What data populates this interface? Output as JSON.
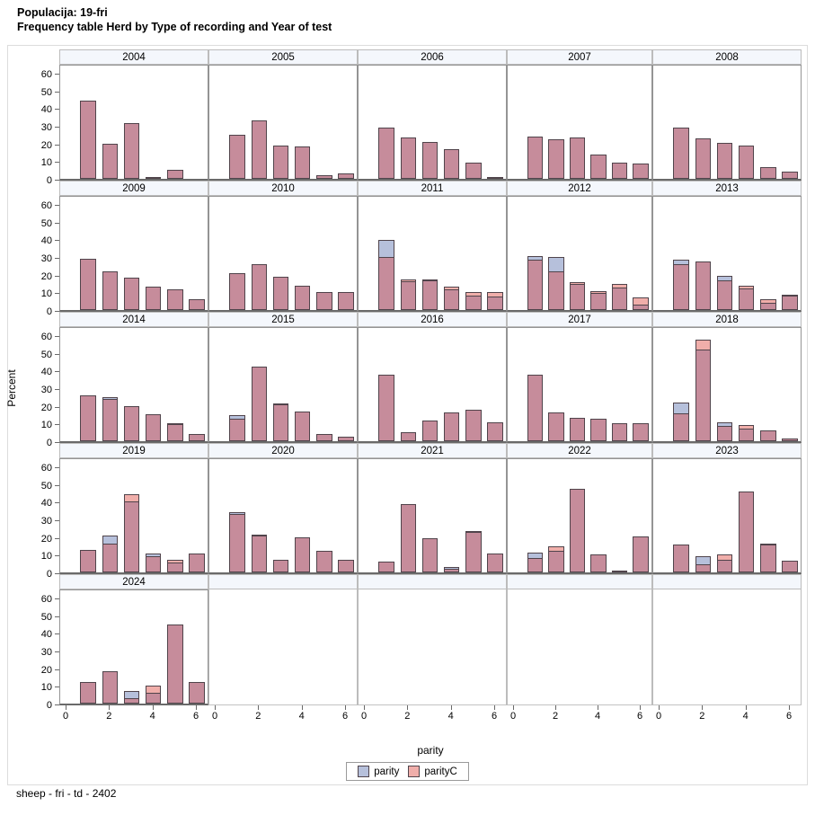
{
  "header": {
    "line1": "Populacija: 19-fri",
    "line2": "Frequency table Herd by Type of recording and Year of test"
  },
  "footer": {
    "text": "sheep - fri - td - 2402"
  },
  "chart_data": {
    "type": "bar",
    "subtype": "paneled-histogram-lattice",
    "title": "Frequency table Herd by Type of recording and Year of test",
    "xlabel": "parity",
    "ylabel": "Percent",
    "x": [
      1,
      2,
      3,
      4,
      5,
      6
    ],
    "xticks": [
      0,
      2,
      4,
      6
    ],
    "yticks": [
      0,
      10,
      20,
      30,
      40,
      50,
      60
    ],
    "ylim": [
      0,
      60
    ],
    "grid": "off",
    "legend_position": "bottom-center",
    "series_names": [
      "parity",
      "parityC"
    ],
    "colors": {
      "parity_fill": "#b6c0db",
      "parityC_fill": "#f0aeaa",
      "overlap_fill": "#c68c9b",
      "bar_border": "#50444b",
      "band_fill": "#f4f7fc",
      "axis": "#696969"
    },
    "panels": [
      {
        "year": "2004",
        "parity": [
          44,
          20,
          31.5,
          0.5,
          5,
          0
        ],
        "parityC": [
          44,
          20,
          31.5,
          0.5,
          5,
          0
        ]
      },
      {
        "year": "2005",
        "parity": [
          25,
          33,
          19,
          18.5,
          2,
          3
        ],
        "parityC": [
          25,
          33,
          19,
          18.5,
          2,
          3
        ]
      },
      {
        "year": "2006",
        "parity": [
          29,
          23.5,
          21,
          17,
          9,
          1
        ],
        "parityC": [
          29,
          23.5,
          21,
          17,
          9,
          1
        ]
      },
      {
        "year": "2007",
        "parity": [
          24,
          22.5,
          23.5,
          13.5,
          9,
          8.5
        ],
        "parityC": [
          24,
          22.5,
          23.5,
          13.5,
          9,
          8.5
        ]
      },
      {
        "year": "2008",
        "parity": [
          29,
          23,
          20.5,
          19,
          6.5,
          4
        ],
        "parityC": [
          29,
          23,
          20.5,
          19,
          6.5,
          4
        ]
      },
      {
        "year": "2009",
        "parity": [
          29,
          22,
          18.5,
          13,
          11.5,
          6
        ],
        "parityC": [
          29,
          22,
          18.5,
          13,
          11.5,
          6
        ]
      },
      {
        "year": "2010",
        "parity": [
          21,
          26,
          19,
          13.5,
          10,
          10
        ],
        "parityC": [
          21,
          26,
          19,
          13.5,
          10,
          10
        ]
      },
      {
        "year": "2011",
        "parity": [
          39.5,
          16.5,
          17,
          11.5,
          8,
          7.5
        ],
        "parityC": [
          30,
          17.5,
          17.5,
          13,
          10,
          10
        ]
      },
      {
        "year": "2012",
        "parity": [
          30.5,
          30,
          15,
          9.5,
          12.5,
          3
        ],
        "parityC": [
          28.5,
          22,
          16,
          10.5,
          14.5,
          7
        ]
      },
      {
        "year": "2013",
        "parity": [
          28.5,
          27.5,
          19.5,
          12,
          4,
          8
        ],
        "parityC": [
          26,
          27.5,
          17,
          13.5,
          6,
          8.5
        ]
      },
      {
        "year": "2014",
        "parity": [
          26,
          25,
          20,
          15.5,
          9.5,
          4
        ],
        "parityC": [
          26,
          24,
          20,
          15.5,
          10,
          4
        ]
      },
      {
        "year": "2015",
        "parity": [
          15,
          42,
          21,
          17,
          4,
          2.5
        ],
        "parityC": [
          12.5,
          42,
          21.5,
          17,
          4,
          2.5
        ]
      },
      {
        "year": "2016",
        "parity": [
          37.5,
          5,
          11.5,
          16.5,
          18,
          10.5
        ],
        "parityC": [
          37.5,
          5,
          11.5,
          16.5,
          18,
          10.5
        ]
      },
      {
        "year": "2017",
        "parity": [
          37.5,
          16.5,
          13,
          12.5,
          10,
          10
        ],
        "parityC": [
          37.5,
          16.5,
          13,
          12.5,
          10,
          10
        ]
      },
      {
        "year": "2018",
        "parity": [
          22,
          52,
          10.5,
          7,
          6,
          1.5
        ],
        "parityC": [
          16,
          57.5,
          8.5,
          9,
          6,
          1.5
        ]
      },
      {
        "year": "2019",
        "parity": [
          12.5,
          21,
          40,
          10.5,
          5.5,
          10.5
        ],
        "parityC": [
          12.5,
          16.5,
          44,
          9,
          7,
          10.5
        ]
      },
      {
        "year": "2020",
        "parity": [
          34,
          21,
          7,
          20,
          12,
          7
        ],
        "parityC": [
          33,
          21.5,
          7,
          20,
          12,
          7
        ]
      },
      {
        "year": "2021",
        "parity": [
          6,
          38.5,
          19.5,
          3,
          23,
          10.5
        ],
        "parityC": [
          6,
          38.5,
          19.5,
          2,
          23.5,
          10.5
        ]
      },
      {
        "year": "2022",
        "parity": [
          11,
          12,
          47.5,
          10,
          0.5,
          20.5
        ],
        "parityC": [
          8,
          14.5,
          47.5,
          10,
          0.5,
          20.5
        ]
      },
      {
        "year": "2023",
        "parity": [
          16,
          9,
          7,
          46,
          16,
          6.5
        ],
        "parityC": [
          16,
          4.5,
          10,
          46,
          16.5,
          6.5
        ]
      },
      {
        "year": "2024",
        "parity": [
          12,
          18.5,
          7,
          6,
          44.5,
          12
        ],
        "parityC": [
          12,
          18.5,
          3,
          10,
          44.5,
          12
        ]
      }
    ]
  }
}
